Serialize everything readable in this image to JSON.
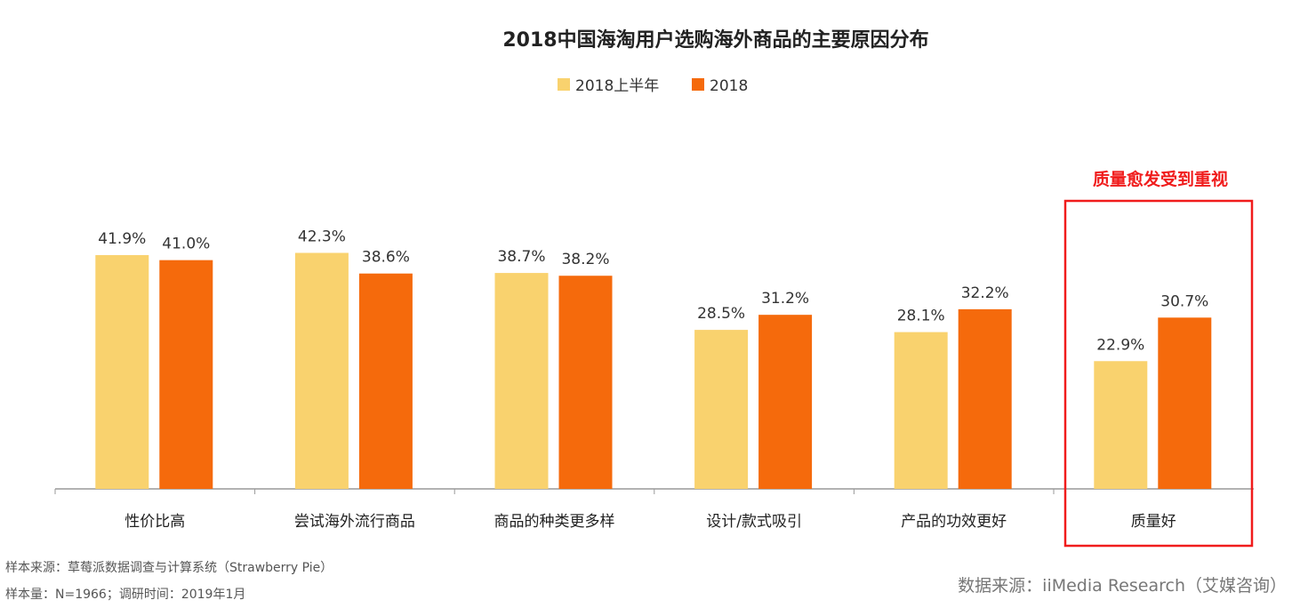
{
  "chart_data": {
    "type": "bar",
    "title": "2018中国海淘用户选购海外商品的主要原因分布",
    "categories": [
      "性价比高",
      "尝试海外流行商品",
      "商品的种类更多样",
      "设计/款式吸引",
      "产品的功效更好",
      "质量好"
    ],
    "series": [
      {
        "name": "2018上半年",
        "color": "#F9D26E",
        "values": [
          41.9,
          42.3,
          38.7,
          28.5,
          28.1,
          22.9
        ],
        "labels": [
          "41.9%",
          "42.3%",
          "38.7%",
          "28.5%",
          "28.1%",
          "22.9%"
        ]
      },
      {
        "name": "2018",
        "color": "#F56A0C",
        "values": [
          41.0,
          38.6,
          38.2,
          31.2,
          32.2,
          30.7
        ],
        "labels": [
          "41.0%",
          "38.6%",
          "38.2%",
          "31.2%",
          "32.2%",
          "30.7%"
        ]
      }
    ],
    "ylim": [
      0,
      50
    ],
    "grid": false,
    "legend_position": "top-center",
    "annotation": {
      "text": "质量愈发受到重视",
      "category": "质量好",
      "color": "#F01C1C"
    }
  },
  "footer": {
    "sample_source": "样本来源：草莓派数据调查与计算系统（Strawberry Pie）",
    "sample_size": "样本量：N=1966；调研时间：2019年1月",
    "data_source": "数据来源：iiMedia Research（艾媒咨询）"
  }
}
